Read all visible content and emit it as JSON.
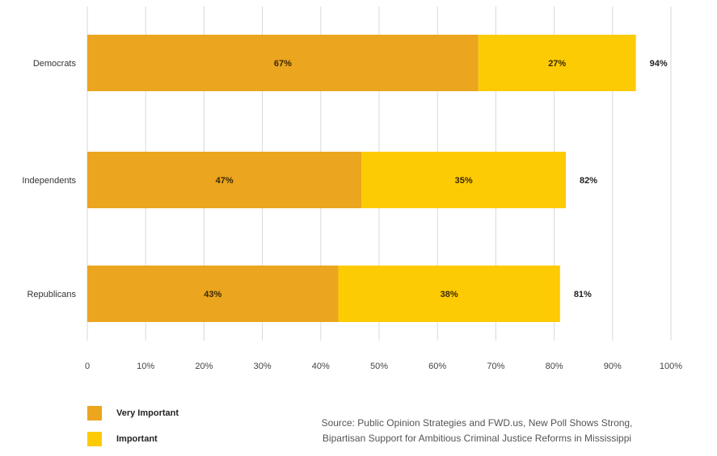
{
  "chart_data": {
    "type": "bar",
    "orientation": "horizontal",
    "stacked": true,
    "categories": [
      "Democrats",
      "Independents",
      "Republicans"
    ],
    "series": [
      {
        "name": "Very Important",
        "values": [
          67,
          47,
          43
        ],
        "labels": [
          "67%",
          "47%",
          "43%"
        ],
        "color": "#EBA51E"
      },
      {
        "name": "Important",
        "values": [
          27,
          35,
          38
        ],
        "labels": [
          "27%",
          "35%",
          "38%"
        ],
        "color": "#FDCB04"
      }
    ],
    "totals": [
      "94%",
      "82%",
      "81%"
    ],
    "xlim": [
      0,
      100
    ],
    "x_ticks": [
      "0",
      "10%",
      "20%",
      "30%",
      "40%",
      "50%",
      "60%",
      "70%",
      "80%",
      "90%",
      "100%"
    ],
    "grid": true,
    "legend_position": "bottom-left"
  },
  "source": {
    "line1": "Source: Public Opinion Strategies and FWD.us, New Poll Shows Strong,",
    "line2": "Bipartisan Support for Ambitious Criminal Justice Reforms in Mississippi"
  }
}
